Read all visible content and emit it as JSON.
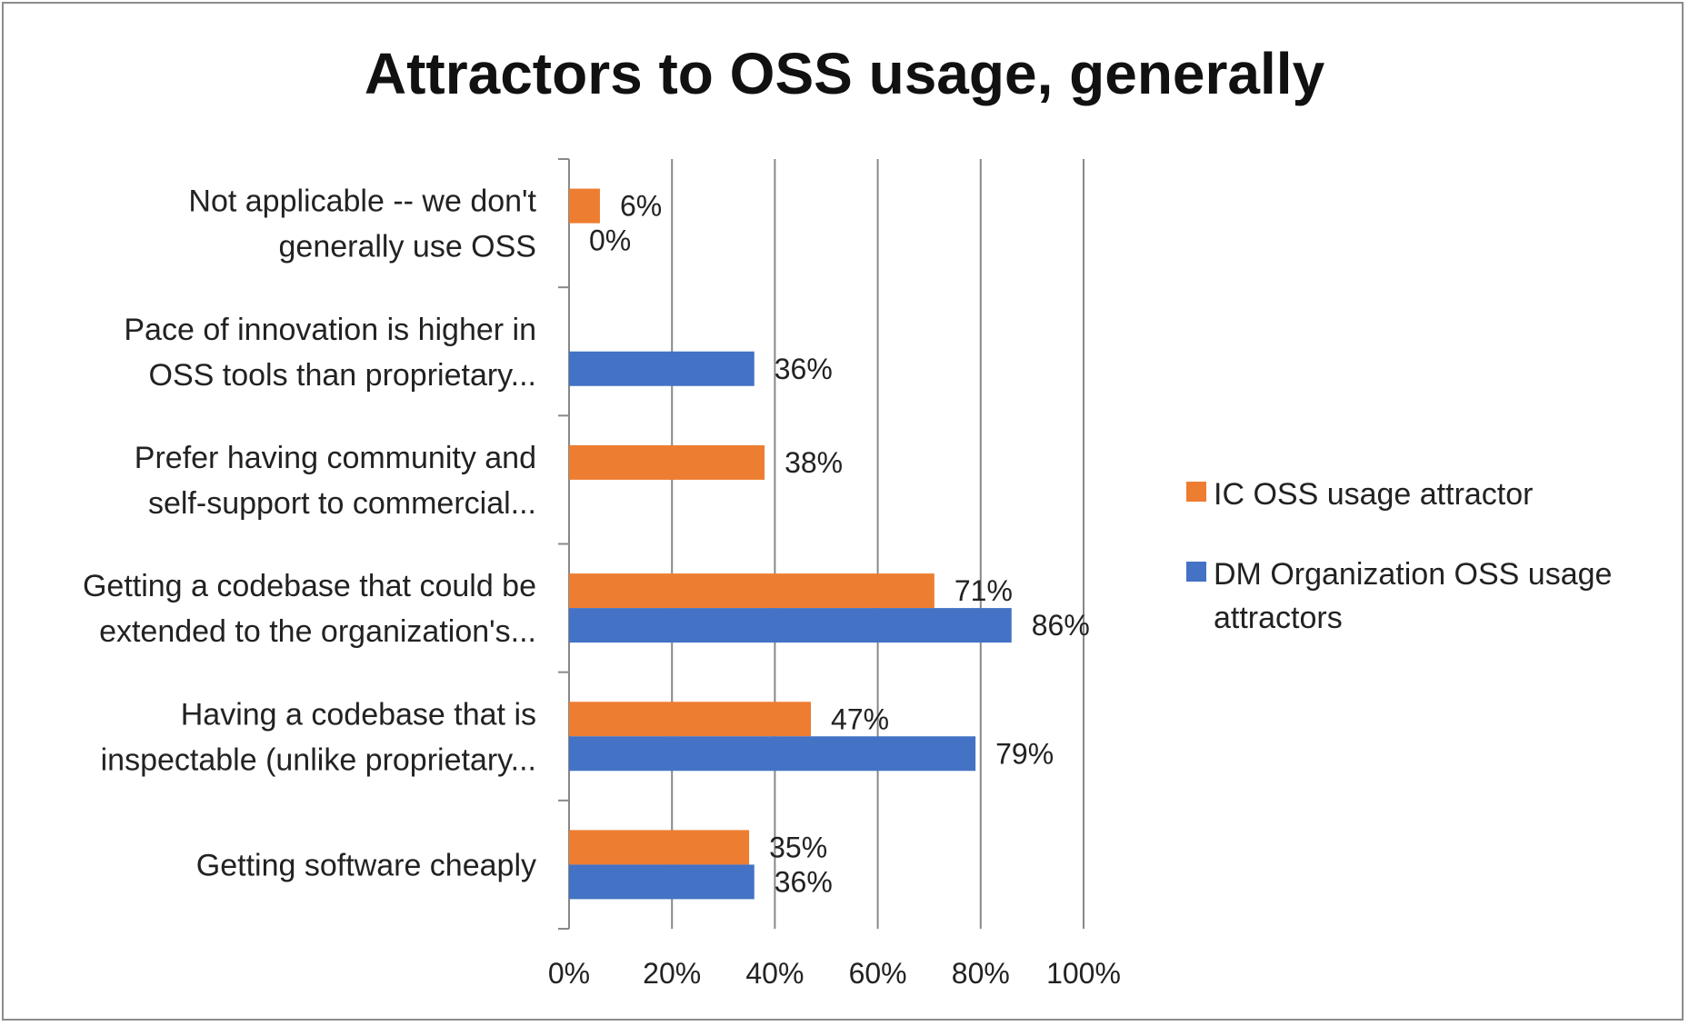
{
  "chart_data": {
    "type": "bar",
    "orientation": "horizontal",
    "title": "Attractors to OSS usage, generally",
    "categories": [
      [
        "Not applicable -- we don't",
        "generally use OSS"
      ],
      [
        "Pace of innovation is higher in",
        "OSS tools than proprietary..."
      ],
      [
        "Prefer having community and",
        "self-support to commercial..."
      ],
      [
        "Getting a codebase that could be",
        "extended to the organization's..."
      ],
      [
        "Having a codebase that is",
        "inspectable (unlike proprietary..."
      ],
      [
        "Getting software cheaply"
      ]
    ],
    "series": [
      {
        "name": "IC OSS usage attractor",
        "color": "#ED7D31",
        "values": [
          0.06,
          null,
          0.38,
          0.71,
          0.47,
          0.35
        ],
        "labels": [
          "6%",
          "",
          "38%",
          "71%",
          "47%",
          "35%"
        ]
      },
      {
        "name": "DM Organization OSS usage attractors",
        "color": "#4472C4",
        "values": [
          0.0,
          0.36,
          null,
          0.86,
          0.79,
          0.36
        ],
        "labels": [
          "0%",
          "36%",
          "",
          "86%",
          "79%",
          "36%"
        ]
      }
    ],
    "xlim": [
      0,
      1
    ],
    "xticks": [
      "0%",
      "20%",
      "40%",
      "60%",
      "80%",
      "100%"
    ],
    "grid": true,
    "legend_position": "right"
  },
  "legend": {
    "items": [
      {
        "label": "IC OSS usage attractor",
        "color": "#ED7D31"
      },
      {
        "label": "DM Organization OSS usage attractors",
        "color": "#4472C4"
      }
    ]
  }
}
